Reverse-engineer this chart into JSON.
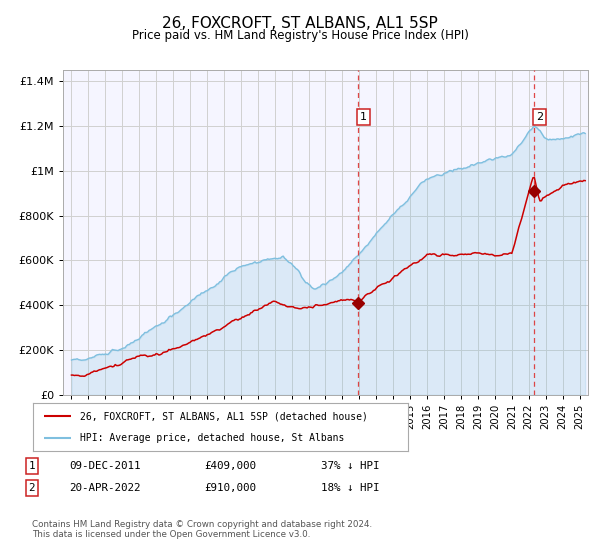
{
  "title": "26, FOXCROFT, ST ALBANS, AL1 5SP",
  "subtitle": "Price paid vs. HM Land Registry's House Price Index (HPI)",
  "legend_line1": "26, FOXCROFT, ST ALBANS, AL1 5SP (detached house)",
  "legend_line2": "HPI: Average price, detached house, St Albans",
  "annotation1_date": "09-DEC-2011",
  "annotation1_price": "£409,000",
  "annotation1_hpi": "37% ↓ HPI",
  "annotation1_year": 2011.92,
  "annotation1_value": 409000,
  "annotation2_date": "20-APR-2022",
  "annotation2_price": "£910,000",
  "annotation2_hpi": "18% ↓ HPI",
  "annotation2_year": 2022.3,
  "annotation2_value": 910000,
  "hpi_color": "#7fbfdf",
  "price_color": "#cc0000",
  "marker_color": "#990000",
  "vline_color": "#dd3333",
  "grid_color": "#d0d0d0",
  "plot_bg_color": "#f5f5ff",
  "fig_bg_color": "#ffffff",
  "ylim": [
    0,
    1450000
  ],
  "xlim_start": 1994.5,
  "xlim_end": 2025.5,
  "ytick_labels": [
    "£0",
    "£200K",
    "£400K",
    "£600K",
    "£800K",
    "£1M",
    "£1.2M",
    "£1.4M"
  ],
  "ytick_values": [
    0,
    200000,
    400000,
    600000,
    800000,
    1000000,
    1200000,
    1400000
  ],
  "footer": "Contains HM Land Registry data © Crown copyright and database right 2024.\nThis data is licensed under the Open Government Licence v3.0."
}
